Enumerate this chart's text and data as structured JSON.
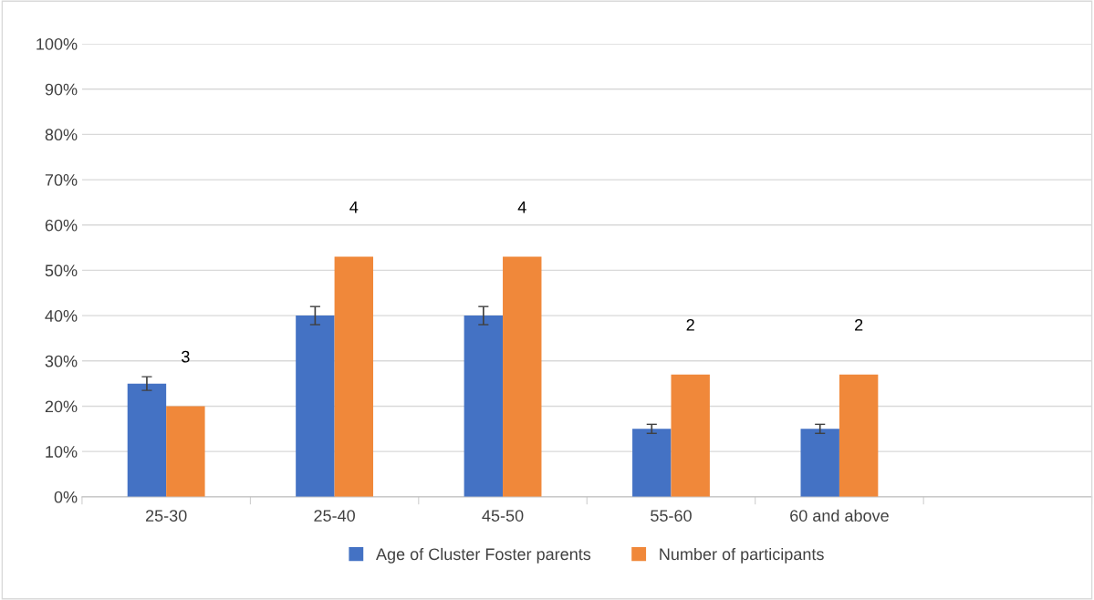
{
  "chart_data": {
    "type": "bar",
    "categories": [
      "25-30",
      "25-40",
      "45-50",
      "55-60",
      "60 and above",
      null
    ],
    "series": [
      {
        "name": "Age of Cluster Foster parents",
        "color": "#4472c4",
        "values": [
          25,
          40,
          40,
          15,
          15,
          null
        ],
        "errors": [
          1.5,
          2,
          2,
          1,
          1,
          null
        ]
      },
      {
        "name": "Number of participants",
        "color": "#f0883a",
        "values": [
          20,
          53,
          53,
          27,
          27,
          null
        ]
      }
    ],
    "annotations": [
      "3",
      "4",
      "4",
      "2",
      "2"
    ],
    "ylim": [
      0,
      100
    ],
    "yticks": [
      {
        "value": 0,
        "label": "0%"
      },
      {
        "value": 10,
        "label": "10%"
      },
      {
        "value": 20,
        "label": "20%"
      },
      {
        "value": 30,
        "label": "30%"
      },
      {
        "value": 40,
        "label": "40%"
      },
      {
        "value": 50,
        "label": "50%"
      },
      {
        "value": 60,
        "label": "60%"
      },
      {
        "value": 70,
        "label": "70%"
      },
      {
        "value": 80,
        "label": "80%"
      },
      {
        "value": 90,
        "label": "90%"
      },
      {
        "value": 100,
        "label": "100%"
      }
    ],
    "grid": "y",
    "legend": "bottom"
  }
}
